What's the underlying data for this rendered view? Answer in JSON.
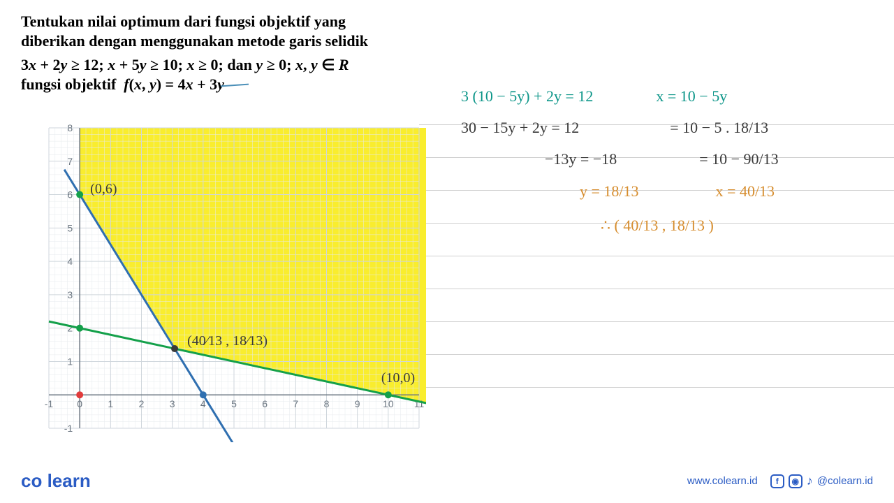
{
  "problem": {
    "line1": "Tentukan nilai optimum dari fungsi objektif yang",
    "line2": "diberikan dengan menggunakan metode garis selidik",
    "line3_html": "3<span class='italic'>x</span> + 2<span class='italic'>y</span> ≥ 12; <span class='italic'>x</span> + 5<span class='italic'>y</span> ≥ 10; <span class='italic'>x</span> ≥ 0; dan <span class='italic'>y</span> ≥ 0; <span class='italic'>x</span>, <span class='italic'>y</span> ∈ <span class='italic'><b>R</b></span>",
    "line4_html": "fungsi objektif &nbsp;<span class='italic'>f</span>(<span class='italic'>x</span>, <span class='italic'>y</span>) = 4<span class='italic'>x</span> + 3<span class='italic'>y</span>"
  },
  "graph": {
    "x_range": [
      -1,
      11
    ],
    "y_range": [
      -1,
      8
    ],
    "x_ticks": [
      -1,
      0,
      1,
      2,
      3,
      4,
      5,
      6,
      7,
      8,
      9,
      10,
      11
    ],
    "y_ticks": [
      -1,
      1,
      2,
      3,
      4,
      5,
      6,
      7,
      8
    ],
    "grid_color": "#cfd6dc",
    "minor_grid_color": "#e6eaee",
    "axis_color": "#6a7580",
    "yellow_fill": "#f9ed2e",
    "line1": {
      "color": "#2f6fb0",
      "width": 3,
      "p1": [
        -0.5,
        6.75
      ],
      "p2": [
        5,
        -1.5
      ],
      "note": "3x+2y=12"
    },
    "line2": {
      "color": "#14a04a",
      "width": 3,
      "p1": [
        -1,
        2.2
      ],
      "p2": [
        12,
        -0.4
      ],
      "note": "x+5y=10"
    },
    "feasible_vertices_outer": [
      [
        0.9,
        8.5
      ],
      [
        12,
        8.5
      ],
      [
        12,
        -0.4
      ],
      [
        10,
        0
      ],
      [
        3.077,
        1.385
      ],
      [
        0,
        6
      ],
      [
        0,
        8.5
      ]
    ],
    "points": {
      "A": {
        "x": 0,
        "y": 6,
        "label": "(0,6)",
        "label_dx": 15,
        "label_dy": -2,
        "color": "#14a04a"
      },
      "B": {
        "x": 3.077,
        "y": 1.385,
        "label": "(40/13 , 18/13)",
        "label_dx": 18,
        "label_dy": -5,
        "color": "#3a3a3a"
      },
      "C": {
        "x": 10,
        "y": 0,
        "label": "(10,0)",
        "label_dx": -10,
        "label_dy": -18,
        "color": "#14a04a"
      },
      "left": {
        "x": 0,
        "y": 2,
        "color": "#14a04a"
      },
      "four": {
        "x": 4,
        "y": 0,
        "color": "#2f6fb0"
      },
      "origin": {
        "x": 0,
        "y": 0,
        "color": "#e13b3b"
      }
    },
    "tick_fontsize": 14,
    "axis_label_color": "#6a7580"
  },
  "work": {
    "r1a": "3 (10 − 5y)  + 2y = 12",
    "r1b": "x = 10 − 5y",
    "r2a": "30 − 15y + 2y = 12",
    "r2b": "= 10 − 5 . 18/13",
    "r3a": "−13y = −18",
    "r3b": "= 10 − 90/13",
    "r4a": "y = 18/13",
    "r4b": "x = 40/13",
    "r5": "∴ ( 40/13 , 18/13 )",
    "colors": {
      "teal": "#0b9588",
      "black": "#3a3a3a",
      "orange": "#d68c2c"
    }
  },
  "footer": {
    "logo_a": "co",
    "logo_b": "learn",
    "url": "www.colearn.id",
    "handle": "@colearn.id"
  }
}
